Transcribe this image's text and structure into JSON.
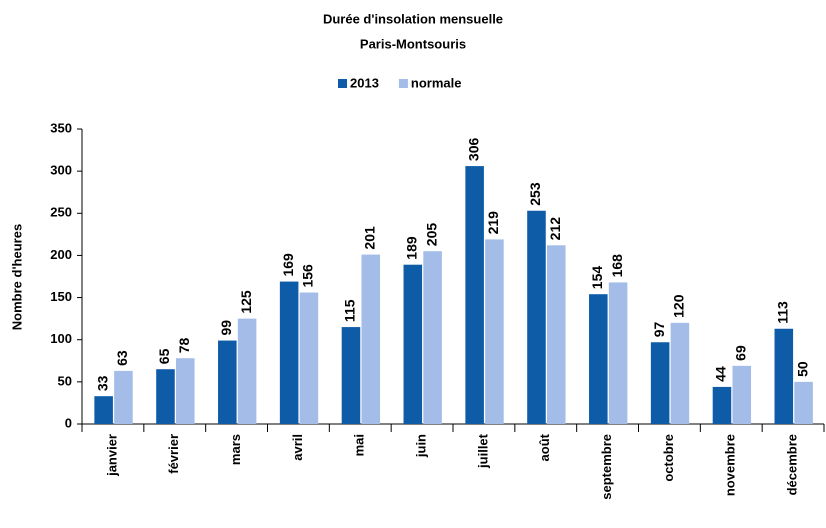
{
  "chart_data": {
    "type": "bar",
    "title": "Durée d'insolation mensuelle",
    "subtitle": "Paris-Montsouris",
    "y_label": "Nombre d'heures",
    "categories": [
      "janvier",
      "février",
      "mars",
      "avril",
      "mai",
      "juin",
      "juillet",
      "août",
      "septembre",
      "octobre",
      "novembre",
      "décembre"
    ],
    "series": [
      {
        "name": "2013",
        "color": "#0e5ca8",
        "values": [
          33,
          65,
          99,
          169,
          115,
          189,
          306,
          253,
          154,
          97,
          44,
          113
        ]
      },
      {
        "name": "normale",
        "color": "#a3bce8",
        "values": [
          63,
          78,
          125,
          156,
          201,
          205,
          219,
          212,
          168,
          120,
          69,
          50
        ]
      }
    ],
    "ylim": [
      0,
      350
    ],
    "yticks": [
      0,
      50,
      100,
      150,
      200,
      250,
      300,
      350
    ],
    "grid": false,
    "legend": "top"
  }
}
